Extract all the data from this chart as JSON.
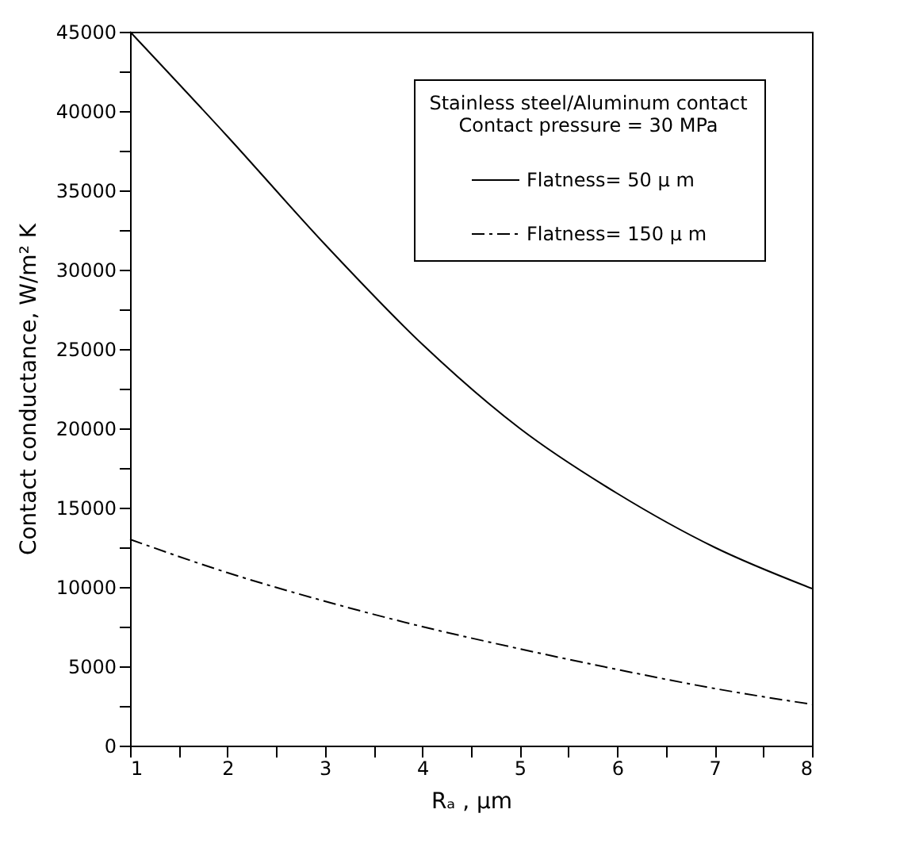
{
  "chart_data": {
    "type": "line",
    "xlabel": "Rₐ , μm",
    "ylabel": "Contact conductance, W/m² K",
    "legend_title": "Stainless steel/Aluminum contact\nContact pressure = 30 MPa",
    "x": [
      1,
      2,
      3,
      4,
      5,
      6,
      7,
      8
    ],
    "series": [
      {
        "name": "Flatness= 50 μ m",
        "color": "#000000",
        "line_style": "solid",
        "values": [
          45000,
          38400,
          31600,
          25300,
          20000,
          15900,
          12500,
          9900
        ]
      },
      {
        "name": "Flatness= 150 μ m",
        "color": "#000000",
        "line_style": "dashdot",
        "values": [
          13000,
          10900,
          9100,
          7500,
          6100,
          4800,
          3600,
          2600
        ]
      }
    ],
    "xlim": [
      1,
      8
    ],
    "xticks": [
      1,
      {
        "value": 1.5,
        "label": null
      },
      2,
      {
        "value": 2.5,
        "label": null
      },
      3,
      {
        "value": 3.5,
        "label": null
      },
      4,
      {
        "value": 4.5,
        "label": null
      },
      5,
      {
        "value": 5.5,
        "label": null
      },
      6,
      {
        "value": 6.5,
        "label": null
      },
      7,
      {
        "value": 7.5,
        "label": null
      },
      8
    ],
    "ylim": [
      0,
      45000
    ],
    "yticks": [
      0,
      {
        "value": 2500,
        "label": null
      },
      5000,
      {
        "value": 7500,
        "label": null
      },
      10000,
      {
        "value": 12500,
        "label": null
      },
      15000,
      {
        "value": 17500,
        "label": null
      },
      20000,
      {
        "value": 22500,
        "label": null
      },
      25000,
      {
        "value": 27500,
        "label": null
      },
      30000,
      {
        "value": 32500,
        "label": null
      },
      35000,
      {
        "value": 37500,
        "label": null
      },
      40000,
      {
        "value": 42500,
        "label": null
      },
      45000
    ],
    "grid": false,
    "legend": "top right",
    "marker": "none"
  }
}
